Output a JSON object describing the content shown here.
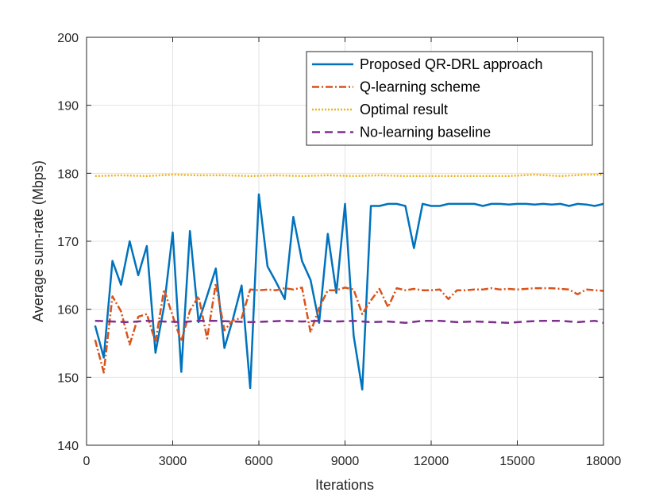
{
  "chart_data": {
    "type": "line",
    "title": "",
    "xlabel": "Iterations",
    "ylabel": "Average sum-rate (Mbps)",
    "xlim": [
      0,
      18000
    ],
    "ylim": [
      140,
      200
    ],
    "xticks": [
      0,
      3000,
      6000,
      9000,
      12000,
      15000,
      18000
    ],
    "xtick_labels": [
      "0",
      "3000",
      "6000",
      "9000",
      "12000",
      "15000",
      "18000"
    ],
    "yticks": [
      140,
      150,
      160,
      170,
      180,
      190,
      200
    ],
    "ytick_labels": [
      "140",
      "150",
      "160",
      "170",
      "180",
      "190",
      "200"
    ],
    "grid": true,
    "legend_position": "top-right",
    "series": [
      {
        "name": "Proposed QR-DRL approach",
        "color": "#0072BD",
        "style": "solid",
        "x": [
          300,
          600,
          900,
          1200,
          1500,
          1800,
          2100,
          2400,
          2700,
          3000,
          3300,
          3600,
          3900,
          4200,
          4500,
          4800,
          5100,
          5400,
          5700,
          6000,
          6300,
          6600,
          6900,
          7200,
          7500,
          7800,
          8100,
          8400,
          8700,
          9000,
          9300,
          9600,
          9900,
          10200,
          10500,
          10800,
          11100,
          11400,
          11700,
          12000,
          12300,
          12600,
          12900,
          13200,
          13500,
          13800,
          14100,
          14400,
          14700,
          15000,
          15300,
          15600,
          15900,
          16200,
          16500,
          16800,
          17100,
          17400,
          17700,
          18000
        ],
        "values": [
          157.6,
          152.9,
          167.1,
          163.6,
          170.0,
          165.0,
          169.3,
          153.6,
          160.4,
          171.3,
          150.8,
          171.5,
          158.1,
          162.0,
          166.0,
          154.3,
          158.6,
          163.5,
          148.4,
          176.9,
          166.3,
          164.0,
          161.5,
          173.6,
          167.1,
          164.3,
          158.0,
          171.1,
          162.4,
          175.5,
          156.1,
          148.2,
          175.2,
          175.2,
          175.5,
          175.5,
          175.2,
          169.0,
          175.5,
          175.2,
          175.2,
          175.5,
          175.5,
          175.5,
          175.5,
          175.2,
          175.5,
          175.5,
          175.4,
          175.5,
          175.5,
          175.4,
          175.5,
          175.4,
          175.5,
          175.2,
          175.5,
          175.4,
          175.2,
          175.5
        ]
      },
      {
        "name": "Q-learning scheme",
        "color": "#D95319",
        "style": "dash-dot",
        "x": [
          300,
          600,
          900,
          1200,
          1500,
          1800,
          2100,
          2400,
          2700,
          3000,
          3300,
          3600,
          3900,
          4200,
          4500,
          4800,
          5100,
          5400,
          5700,
          6000,
          6300,
          6600,
          6900,
          7200,
          7500,
          7800,
          8100,
          8400,
          8700,
          9000,
          9300,
          9600,
          9900,
          10200,
          10500,
          10800,
          11100,
          11400,
          11700,
          12000,
          12300,
          12600,
          12900,
          13200,
          13500,
          13800,
          14100,
          14400,
          14700,
          15000,
          15300,
          15600,
          15900,
          16200,
          16500,
          16800,
          17100,
          17400,
          17700,
          18000
        ],
        "values": [
          155.5,
          150.7,
          161.9,
          159.7,
          154.8,
          158.9,
          159.3,
          155.2,
          162.9,
          159.0,
          155.3,
          159.8,
          161.9,
          155.7,
          163.8,
          156.9,
          158.4,
          158.7,
          162.9,
          162.8,
          162.9,
          162.8,
          163.1,
          162.9,
          163.2,
          156.6,
          160.2,
          162.8,
          162.8,
          163.2,
          162.9,
          159.3,
          161.3,
          163.0,
          160.3,
          163.1,
          162.8,
          163.0,
          162.8,
          162.8,
          162.9,
          161.5,
          162.8,
          162.8,
          162.9,
          162.9,
          163.1,
          162.9,
          163.0,
          162.9,
          163.0,
          163.1,
          163.1,
          163.1,
          163.0,
          162.9,
          162.2,
          162.9,
          162.8,
          162.7
        ]
      },
      {
        "name": "Optimal result",
        "color": "#EDB120",
        "style": "dotted",
        "x": [
          300,
          1200,
          2100,
          3000,
          3900,
          4800,
          5700,
          6600,
          7500,
          8400,
          9300,
          10200,
          11100,
          12000,
          12900,
          13800,
          14700,
          15600,
          16500,
          17400,
          18000
        ],
        "values": [
          179.6,
          179.7,
          179.6,
          179.8,
          179.7,
          179.7,
          179.6,
          179.7,
          179.6,
          179.7,
          179.6,
          179.7,
          179.6,
          179.6,
          179.6,
          179.6,
          179.6,
          179.8,
          179.6,
          179.8,
          179.8
        ]
      },
      {
        "name": "No-learning baseline",
        "color": "#7E2F8E",
        "style": "dashed",
        "x": [
          300,
          900,
          1500,
          2100,
          2700,
          3300,
          3900,
          4500,
          5100,
          5700,
          6300,
          6900,
          7500,
          8100,
          8700,
          9300,
          9900,
          10500,
          11100,
          11700,
          12300,
          12900,
          13500,
          14100,
          14700,
          15300,
          15900,
          16500,
          17100,
          17700,
          18000
        ],
        "values": [
          158.3,
          158.2,
          158.1,
          158.3,
          158.2,
          158.1,
          158.3,
          158.3,
          158.2,
          158.1,
          158.2,
          158.3,
          158.2,
          158.3,
          158.2,
          158.3,
          158.1,
          158.2,
          158.0,
          158.3,
          158.3,
          158.1,
          158.2,
          158.1,
          158.0,
          158.2,
          158.3,
          158.3,
          158.1,
          158.3,
          158.0
        ]
      }
    ]
  }
}
